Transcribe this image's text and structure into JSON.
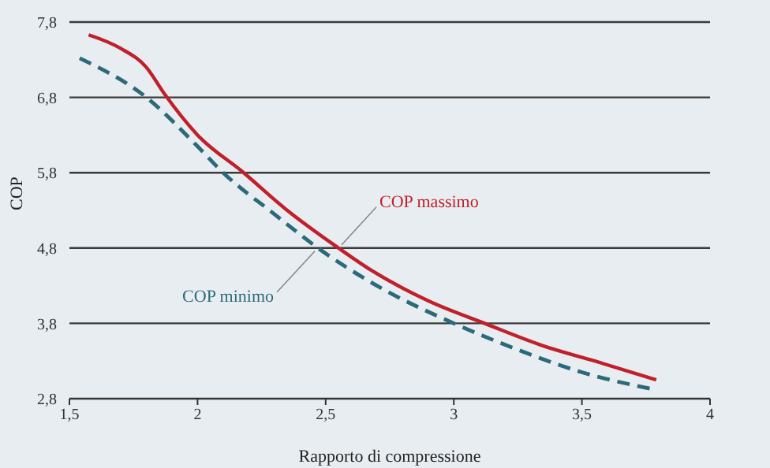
{
  "chart_data": {
    "type": "line",
    "xlabel": "Rapporto di compressione",
    "ylabel": "COP",
    "xlim": [
      1.5,
      4
    ],
    "xticks": [
      {
        "value": 1.5,
        "label": "1,5"
      },
      2,
      {
        "value": 2.5,
        "label": "2,5"
      },
      3,
      {
        "value": 3.5,
        "label": "3,5"
      },
      4
    ],
    "ylim": [
      2.8,
      7.8
    ],
    "yticks": [
      {
        "value": 2.8,
        "label": "2,8"
      },
      {
        "value": 3.8,
        "label": "3,8"
      },
      {
        "value": 4.8,
        "label": "4,8"
      },
      {
        "value": 5.8,
        "label": "5,8"
      },
      {
        "value": 6.8,
        "label": "6,8"
      },
      {
        "value": 7.8,
        "label": "7,8"
      }
    ],
    "grid": "y",
    "legend": false,
    "marker": "none",
    "series": [
      {
        "name": "COP massimo",
        "color": "#c0202a",
        "line_style": "solid",
        "x": [
          1.575,
          1.7,
          1.8,
          1.87,
          2.0,
          2.18,
          2.35,
          2.55,
          2.68,
          2.9,
          3.12,
          3.35,
          3.55,
          3.79
        ],
        "values": [
          7.63,
          7.45,
          7.2,
          6.85,
          6.3,
          5.8,
          5.3,
          4.8,
          4.5,
          4.1,
          3.8,
          3.5,
          3.3,
          3.05
        ]
      },
      {
        "name": "COP minimo",
        "color": "#2c6a7a",
        "line_style": "dashed",
        "x": [
          1.54,
          1.8,
          2.0,
          2.1,
          2.3,
          2.47,
          2.7,
          3.0,
          3.25,
          3.5,
          3.77
        ],
        "values": [
          7.32,
          6.8,
          6.15,
          5.8,
          5.25,
          4.8,
          4.3,
          3.8,
          3.45,
          3.15,
          2.93
        ]
      }
    ]
  }
}
